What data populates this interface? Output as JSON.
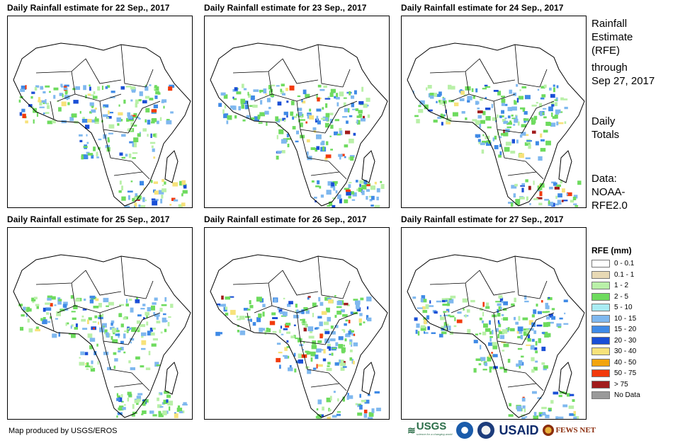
{
  "panels": [
    {
      "title": "Daily Rainfall estimate for 22 Sep., 2017"
    },
    {
      "title": "Daily Rainfall estimate for 23 Sep., 2017"
    },
    {
      "title": "Daily Rainfall estimate for 24 Sep., 2017"
    },
    {
      "title": "Daily Rainfall estimate for 25 Sep., 2017"
    },
    {
      "title": "Daily Rainfall estimate for 26 Sep., 2017"
    },
    {
      "title": "Daily Rainfall estimate for 27 Sep., 2017"
    }
  ],
  "side": {
    "heading_1": "Rainfall",
    "heading_2": "Estimate",
    "heading_3": "(RFE)",
    "through_1": "through",
    "through_2": "Sep 27, 2017",
    "daily_1": "Daily",
    "daily_2": "Totals",
    "data_1": "Data:",
    "data_2": "NOAA-",
    "data_3": "RFE2.0"
  },
  "legend": {
    "title": "RFE (mm)",
    "items": [
      {
        "label": "0 - 0.1",
        "color": "#ffffff"
      },
      {
        "label": "0.1 - 1",
        "color": "#e8d9b5"
      },
      {
        "label": "1 - 2",
        "color": "#b9f0a8"
      },
      {
        "label": "2 - 5",
        "color": "#6edb5e"
      },
      {
        "label": "5 - 10",
        "color": "#a9ecf3"
      },
      {
        "label": "10 - 15",
        "color": "#7fb8ef"
      },
      {
        "label": "15 - 20",
        "color": "#3f8ae6"
      },
      {
        "label": "20 - 30",
        "color": "#1a4fd6"
      },
      {
        "label": "30 - 40",
        "color": "#f7e27a"
      },
      {
        "label": "40 - 50",
        "color": "#f2a40f"
      },
      {
        "label": "50 - 75",
        "color": "#f23a0c"
      },
      {
        "label": "> 75",
        "color": "#a11b1b"
      },
      {
        "label": "No Data",
        "color": "#9a9a9a"
      }
    ]
  },
  "credit": "Map produced by USGS/EROS",
  "logos": {
    "usgs": "USGS",
    "usgs_tagline": "science for a changing world",
    "noaa": "NOAA",
    "usaid": "USAID",
    "fews": "FEWS NET"
  }
}
